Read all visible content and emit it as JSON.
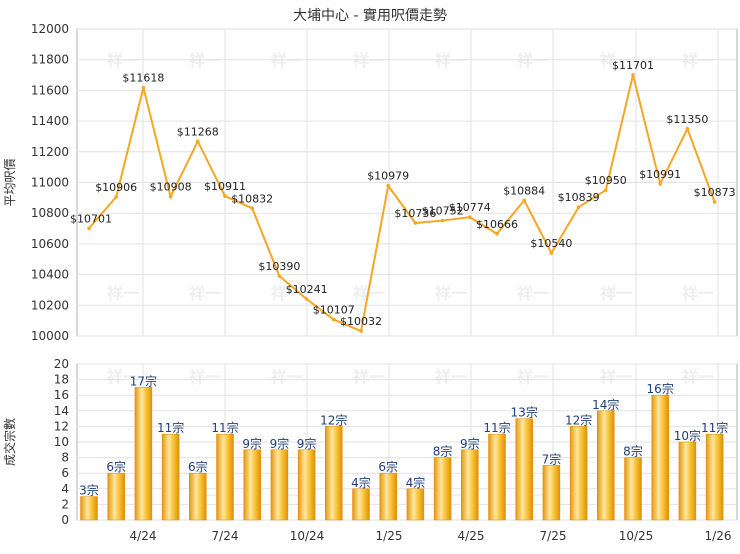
{
  "chart_data": [
    {
      "type": "line",
      "title": "大埔中心 - 實用呎價走勢",
      "ylabel": "平均呎價",
      "ylim": [
        10000,
        12000
      ],
      "yticks": [
        10000,
        10200,
        10400,
        10600,
        10800,
        11000,
        11200,
        11400,
        11600,
        11800,
        12000
      ],
      "x_ticks": [
        "4/24",
        "7/24",
        "10/24",
        "1/25",
        "4/25",
        "7/25",
        "10/25",
        "1/26"
      ],
      "grid": true,
      "color": "#f5a623",
      "values": [
        10701,
        10906,
        11618,
        10908,
        11268,
        10911,
        10832,
        10390,
        10241,
        10107,
        10032,
        10979,
        10736,
        10752,
        10774,
        10666,
        10884,
        10540,
        10839,
        10950,
        11701,
        10991,
        11350,
        10873
      ],
      "labels": [
        "$10701",
        "$10906",
        "$11618",
        "$10908",
        "$11268",
        "$10911",
        "$10832",
        "$10390",
        "$10241",
        "$10107",
        "$10032",
        "$10979",
        "$10736",
        "$10752",
        "$10774",
        "$10666",
        "$10884",
        "$10540",
        "$10839",
        "$10950",
        "$11701",
        "$10991",
        "$11350",
        "$10873"
      ]
    },
    {
      "type": "bar",
      "ylabel": "成交宗數",
      "ylim": [
        0,
        20
      ],
      "yticks": [
        0,
        2,
        4,
        6,
        8,
        10,
        12,
        14,
        16,
        18,
        20
      ],
      "x_ticks": [
        "4/24",
        "7/24",
        "10/24",
        "1/25",
        "4/25",
        "7/25",
        "10/25",
        "1/26"
      ],
      "grid": true,
      "color": "#f5b325",
      "values": [
        3,
        6,
        17,
        11,
        6,
        11,
        9,
        9,
        9,
        12,
        4,
        6,
        4,
        8,
        9,
        11,
        13,
        7,
        12,
        14,
        8,
        16,
        10,
        11
      ],
      "labels": [
        "3宗",
        "6宗",
        "17宗",
        "11宗",
        "6宗",
        "11宗",
        "9宗",
        "9宗",
        "9宗",
        "12宗",
        "4宗",
        "6宗",
        "4宗",
        "8宗",
        "9宗",
        "11宗",
        "13宗",
        "7宗",
        "12宗",
        "14宗",
        "8宗",
        "16宗",
        "10宗",
        "11宗"
      ]
    }
  ],
  "watermark": "祥一",
  "colors": {
    "line": "#f5a623",
    "bar_light": "#fde9a8",
    "bar_mid": "#f7c12e",
    "bar_dark": "#e08e0b",
    "label_blue": "#1f3f7a"
  }
}
